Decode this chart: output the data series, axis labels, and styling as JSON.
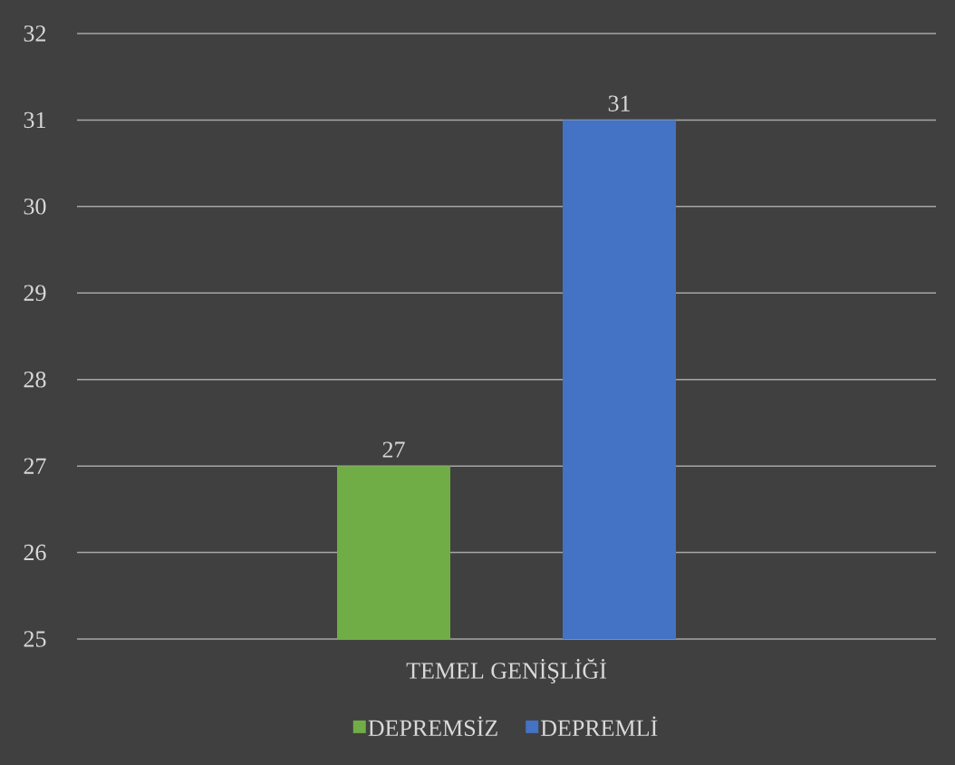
{
  "chart_data": {
    "type": "bar",
    "categories": [
      "TEMEL GENİŞLİĞİ"
    ],
    "series": [
      {
        "name": "DEPREMSİZ",
        "color": "#70ad47",
        "values": [
          27
        ]
      },
      {
        "name": "DEPREMLİ",
        "color": "#4472c4",
        "values": [
          31
        ]
      }
    ],
    "ylim": [
      25,
      32
    ],
    "yticks": [
      25,
      26,
      27,
      28,
      29,
      30,
      31,
      32
    ],
    "grid": "y",
    "legend": "bottom",
    "data_labels": true
  }
}
